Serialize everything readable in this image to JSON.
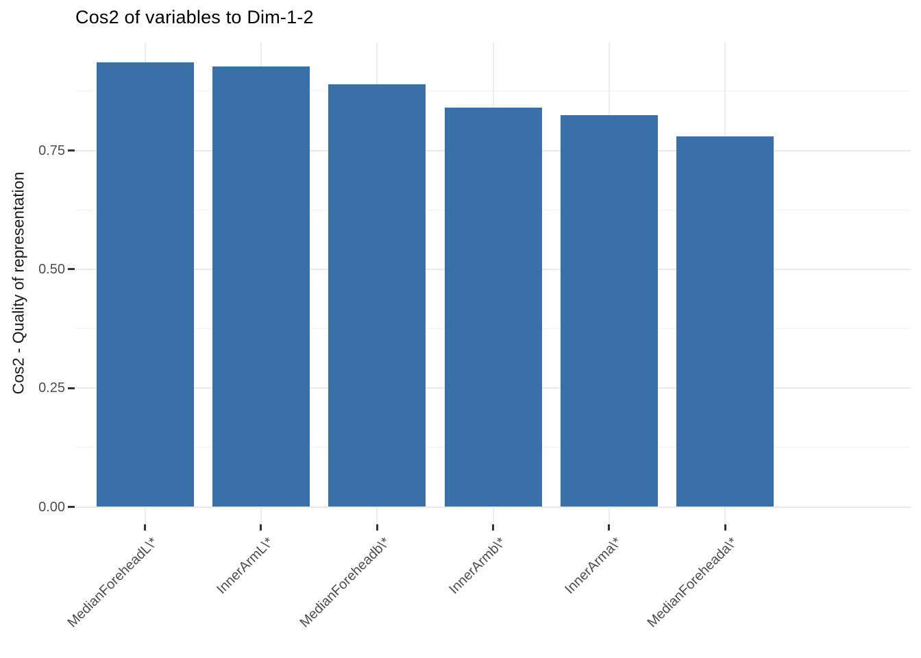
{
  "chart": {
    "title": "Cos2 of variables to Dim-1-2",
    "ylabel": "Cos2 - Quality of representation"
  },
  "chart_data": {
    "type": "bar",
    "title": "Cos2 of variables to Dim-1-2",
    "xlabel": "",
    "ylabel": "Cos2 - Quality of representation",
    "categories": [
      "MedianForeheadL\\*",
      "InnerArmL\\*",
      "MedianForeheadb\\*",
      "InnerArmb\\*",
      "InnerArma\\*",
      "MedianForeheada\\*"
    ],
    "values": [
      0.935,
      0.927,
      0.89,
      0.84,
      0.824,
      0.78
    ],
    "ytick_values": [
      0.0,
      0.25,
      0.5,
      0.75
    ],
    "ytick_labels": [
      "0.00",
      "0.25",
      "0.50",
      "0.75"
    ],
    "minor_gridline_values": [
      0.125,
      0.375,
      0.625,
      0.875
    ],
    "ylim": [
      -0.047,
      0.978
    ],
    "x_label_rotation_deg": 45,
    "grid": true,
    "legend_position": "none",
    "bar_color": "#3a70a8",
    "grid_major_color": "#e9e9e9",
    "grid_minor_color": "#f2f2f2",
    "tick_mark_color": "#333333",
    "axis_text_color": "#4d4d4d",
    "title_color": "#000000"
  }
}
